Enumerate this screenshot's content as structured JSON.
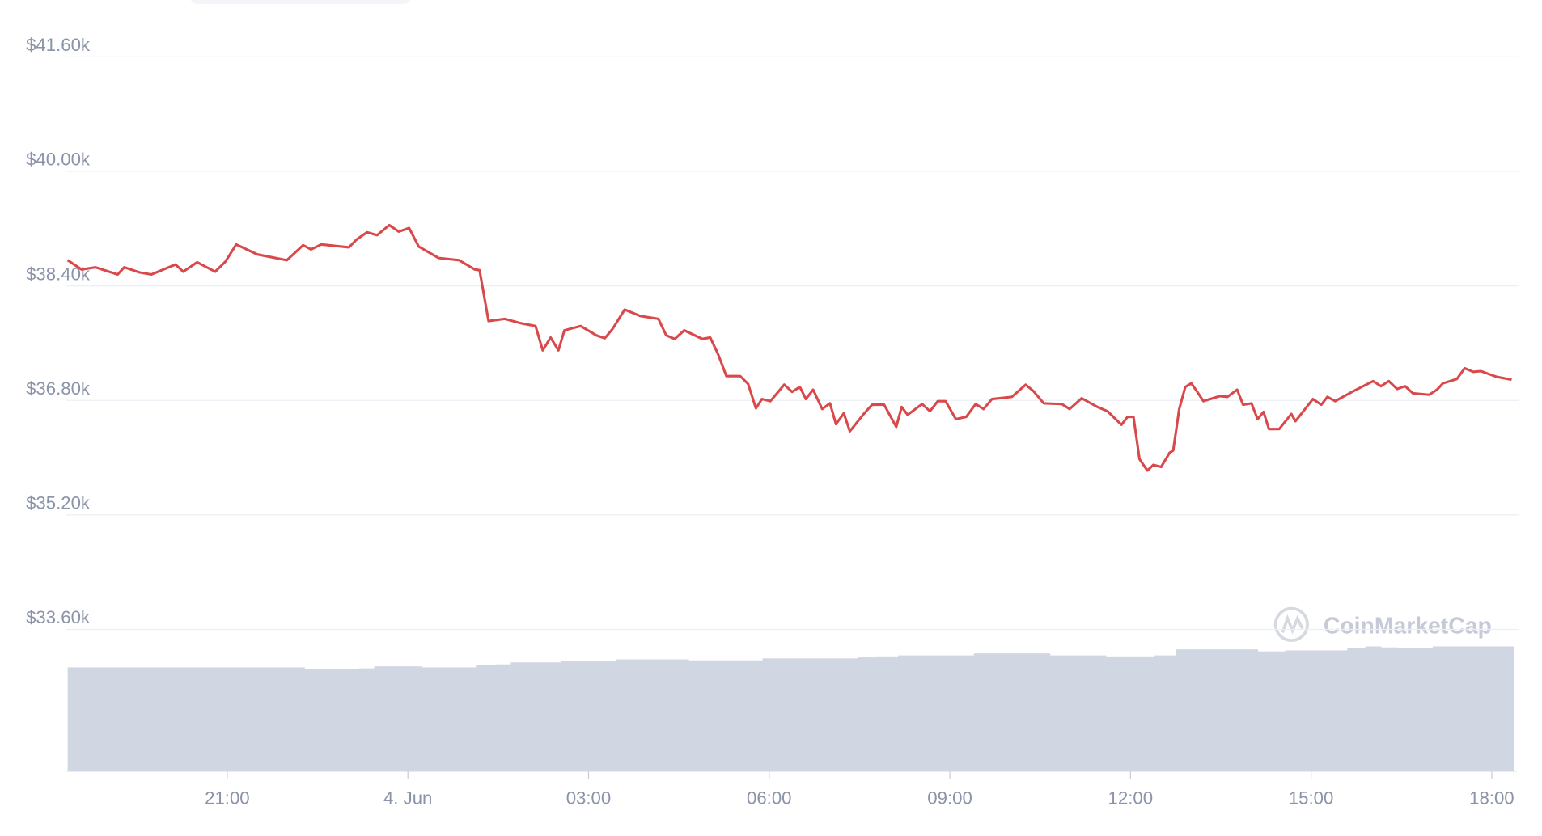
{
  "chart_data": {
    "type": "line",
    "watermark": "CoinMarketCap",
    "x": [
      -5.65,
      -5.42,
      -5.19,
      -4.82,
      -4.71,
      -4.46,
      -4.26,
      -3.86,
      -3.73,
      -3.5,
      -3.2,
      -3.03,
      -2.85,
      -2.5,
      -2.01,
      -1.74,
      -1.61,
      -1.44,
      -0.98,
      -0.85,
      -0.68,
      -0.51,
      -0.31,
      -0.15,
      0.02,
      0.18,
      0.51,
      0.85,
      1.11,
      1.19,
      1.34,
      1.61,
      1.87,
      2.12,
      2.24,
      2.37,
      2.5,
      2.6,
      2.87,
      3.13,
      3.27,
      3.4,
      3.6,
      3.86,
      4.16,
      4.29,
      4.43,
      4.59,
      4.89,
      5.02,
      5.15,
      5.29,
      5.52,
      5.65,
      5.78,
      5.88,
      6.02,
      6.25,
      6.38,
      6.51,
      6.61,
      6.73,
      6.88,
      7.01,
      7.11,
      7.24,
      7.34,
      7.57,
      7.71,
      7.91,
      8.11,
      8.2,
      8.3,
      8.54,
      8.67,
      8.8,
      8.93,
      9.1,
      9.27,
      9.43,
      9.56,
      9.7,
      10.03,
      10.26,
      10.39,
      10.56,
      10.86,
      10.99,
      11.19,
      11.45,
      11.62,
      11.85,
      11.95,
      12.05,
      12.15,
      12.28,
      12.38,
      12.51,
      12.65,
      12.71,
      12.81,
      12.91,
      13.01,
      13.11,
      13.21,
      13.48,
      13.61,
      13.77,
      13.87,
      14.01,
      14.11,
      14.21,
      14.3,
      14.47,
      14.67,
      14.74,
      15.03,
      15.17,
      15.27,
      15.4,
      15.7,
      16.03,
      16.16,
      16.29,
      16.43,
      16.56,
      16.69,
      16.96,
      17.09,
      17.19,
      17.42,
      17.55,
      17.69,
      17.82,
      18.08,
      18.33
    ],
    "series": [
      {
        "color": "#d9484b",
        "values": [
          38760,
          38630,
          38660,
          38560,
          38660,
          38590,
          38560,
          38700,
          38600,
          38730,
          38600,
          38740,
          38980,
          38840,
          38760,
          38970,
          38910,
          38980,
          38940,
          39050,
          39150,
          39110,
          39250,
          39160,
          39210,
          38950,
          38790,
          38760,
          38630,
          38620,
          37910,
          37940,
          37880,
          37840,
          37500,
          37680,
          37500,
          37780,
          37840,
          37710,
          37670,
          37800,
          38070,
          37980,
          37940,
          37710,
          37660,
          37780,
          37660,
          37680,
          37450,
          37140,
          37140,
          37030,
          36690,
          36820,
          36790,
          37020,
          36920,
          36990,
          36820,
          36950,
          36680,
          36760,
          36470,
          36620,
          36370,
          36610,
          36740,
          36740,
          36430,
          36710,
          36600,
          36750,
          36650,
          36790,
          36790,
          36540,
          36570,
          36750,
          36680,
          36820,
          36850,
          37020,
          36930,
          36760,
          36750,
          36680,
          36830,
          36710,
          36650,
          36460,
          36570,
          36570,
          35980,
          35820,
          35900,
          35870,
          36070,
          36100,
          36680,
          36990,
          37040,
          36920,
          36790,
          36860,
          36850,
          36950,
          36740,
          36760,
          36540,
          36640,
          36400,
          36400,
          36610,
          36510,
          36820,
          36740,
          36850,
          36790,
          36930,
          37070,
          37000,
          37070,
          36960,
          37000,
          36900,
          36880,
          36950,
          37040,
          37100,
          37250,
          37200,
          37210,
          37130,
          37090
        ]
      }
    ],
    "volume": {
      "color": "#d1d6e3",
      "bins": [
        -5.65,
        -1.72,
        -0.81,
        -0.56,
        0.22,
        1.13,
        1.46,
        1.71,
        2.54,
        3.45,
        4.66,
        5.89,
        7.48,
        7.74,
        8.14,
        9.4,
        10.66,
        11.59,
        12.4,
        12.75,
        14.11,
        14.57,
        15.6,
        15.9,
        16.16,
        16.43,
        17.02,
        18.37
      ],
      "values": [
        104,
        102,
        103,
        105,
        104,
        106,
        107,
        109,
        110,
        112,
        111,
        113,
        114,
        115,
        116,
        118,
        116,
        115,
        116,
        122,
        120,
        121,
        123,
        125,
        124,
        123,
        125
      ],
      "ylim": [
        0,
        130
      ]
    },
    "xlim": [
      -5.68,
      18.42
    ],
    "xticks": [
      {
        "value": -3,
        "label": "21:00"
      },
      {
        "value": 0,
        "label": "4. Jun"
      },
      {
        "value": 3,
        "label": "03:00"
      },
      {
        "value": 6,
        "label": "06:00"
      },
      {
        "value": 9,
        "label": "09:00"
      },
      {
        "value": 12,
        "label": "12:00"
      },
      {
        "value": 15,
        "label": "15:00"
      },
      {
        "value": 18,
        "label": "18:00"
      }
    ],
    "ylim": [
      33600,
      41600
    ],
    "yticks": [
      {
        "value": 33600,
        "label": "$33.60k"
      },
      {
        "value": 35200,
        "label": "$35.20k"
      },
      {
        "value": 36800,
        "label": "$36.80k"
      },
      {
        "value": 38400,
        "label": "$38.40k"
      },
      {
        "value": 40000,
        "label": "$40.00k"
      },
      {
        "value": 41600,
        "label": "$41.60k"
      }
    ],
    "grid": true
  }
}
